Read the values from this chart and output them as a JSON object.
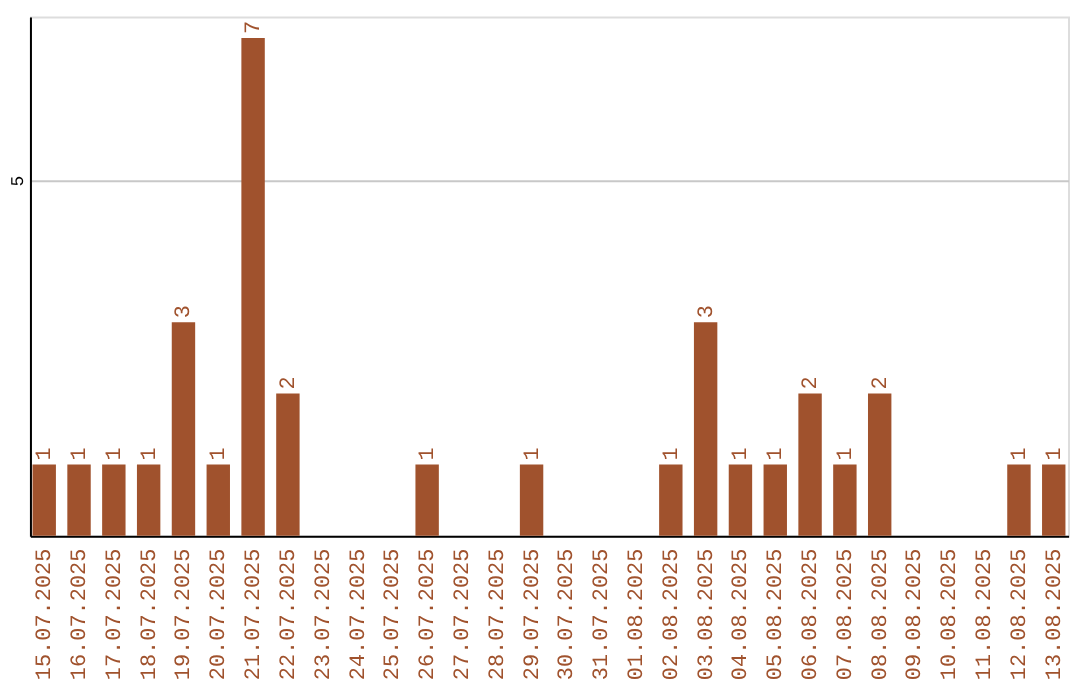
{
  "chart_data": {
    "type": "bar",
    "categories": [
      "15.07.2025",
      "16.07.2025",
      "17.07.2025",
      "18.07.2025",
      "19.07.2025",
      "20.07.2025",
      "21.07.2025",
      "22.07.2025",
      "23.07.2025",
      "24.07.2025",
      "25.07.2025",
      "26.07.2025",
      "27.07.2025",
      "28.07.2025",
      "29.07.2025",
      "30.07.2025",
      "31.07.2025",
      "01.08.2025",
      "02.08.2025",
      "03.08.2025",
      "04.08.2025",
      "05.08.2025",
      "06.08.2025",
      "07.08.2025",
      "08.08.2025",
      "09.08.2025",
      "10.08.2025",
      "11.08.2025",
      "12.08.2025",
      "13.08.2025"
    ],
    "values": [
      1,
      1,
      1,
      1,
      3,
      1,
      7,
      2,
      0,
      0,
      0,
      1,
      0,
      0,
      1,
      0,
      0,
      0,
      1,
      3,
      1,
      1,
      2,
      1,
      2,
      0,
      0,
      0,
      1,
      1
    ],
    "value_labels": [
      "1",
      "1",
      "1",
      "1",
      "3",
      "1",
      "7",
      "2",
      null,
      null,
      null,
      "1",
      null,
      null,
      "1",
      null,
      null,
      null,
      "1",
      "3",
      "1",
      "1",
      "2",
      "1",
      "2",
      null,
      null,
      null,
      "1",
      "1"
    ],
    "color": "#a0522d",
    "ylim": [
      0,
      7.3
    ],
    "yticks": [
      5
    ],
    "grid": "y"
  }
}
